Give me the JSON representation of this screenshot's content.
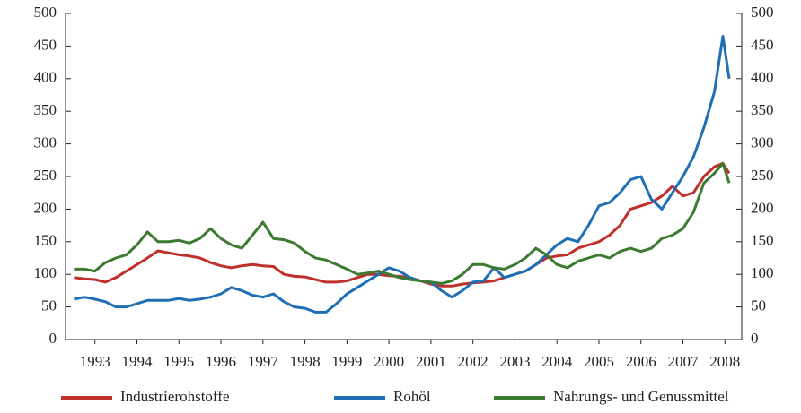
{
  "chart_data": {
    "type": "line",
    "x": [
      1993.0,
      1993.25,
      1993.5,
      1993.75,
      1994.0,
      1994.25,
      1994.5,
      1994.75,
      1995.0,
      1995.25,
      1995.5,
      1995.75,
      1996.0,
      1996.25,
      1996.5,
      1996.75,
      1997.0,
      1997.25,
      1997.5,
      1997.75,
      1998.0,
      1998.25,
      1998.5,
      1998.75,
      1999.0,
      1999.25,
      1999.5,
      1999.75,
      2000.0,
      2000.25,
      2000.5,
      2000.75,
      2001.0,
      2001.25,
      2001.5,
      2001.75,
      2002.0,
      2002.25,
      2002.5,
      2002.75,
      2003.0,
      2003.25,
      2003.5,
      2003.75,
      2004.0,
      2004.25,
      2004.5,
      2004.75,
      2005.0,
      2005.25,
      2005.5,
      2005.75,
      2006.0,
      2006.25,
      2006.5,
      2006.75,
      2007.0,
      2007.25,
      2007.5,
      2007.75,
      2008.0,
      2008.25,
      2008.45,
      2008.6
    ],
    "series": [
      {
        "name": "Industrierohstoffe",
        "color": "#c0302b",
        "values": [
          95,
          93,
          92,
          88,
          95,
          105,
          115,
          125,
          136,
          133,
          130,
          128,
          125,
          118,
          113,
          110,
          113,
          115,
          113,
          112,
          100,
          97,
          96,
          92,
          88,
          88,
          90,
          95,
          100,
          100,
          98,
          97,
          95,
          90,
          85,
          82,
          82,
          85,
          87,
          88,
          90,
          95,
          100,
          105,
          115,
          125,
          128,
          130,
          140,
          145,
          150,
          160,
          175,
          200,
          205,
          210,
          220,
          235,
          220,
          225,
          250,
          265,
          270,
          255
        ]
      },
      {
        "name": "Rohöl",
        "color": "#1f6fb5",
        "values": [
          62,
          65,
          62,
          58,
          50,
          50,
          55,
          60,
          60,
          60,
          63,
          60,
          62,
          65,
          70,
          80,
          75,
          68,
          65,
          70,
          58,
          50,
          48,
          42,
          42,
          55,
          70,
          80,
          90,
          100,
          110,
          105,
          95,
          90,
          88,
          75,
          65,
          75,
          88,
          90,
          110,
          95,
          100,
          105,
          115,
          130,
          145,
          155,
          150,
          175,
          205,
          210,
          225,
          245,
          250,
          215,
          200,
          225,
          250,
          280,
          325,
          380,
          465,
          400
        ]
      },
      {
        "name": "Nahrungs- und Genussmittel",
        "color": "#3c7a32",
        "values": [
          108,
          108,
          105,
          118,
          125,
          130,
          145,
          165,
          150,
          150,
          152,
          148,
          155,
          170,
          155,
          145,
          140,
          160,
          180,
          155,
          153,
          148,
          135,
          125,
          122,
          115,
          108,
          100,
          102,
          105,
          100,
          95,
          92,
          90,
          88,
          86,
          90,
          100,
          115,
          115,
          110,
          108,
          115,
          125,
          140,
          130,
          115,
          110,
          120,
          125,
          130,
          125,
          135,
          140,
          135,
          140,
          155,
          160,
          170,
          195,
          240,
          255,
          270,
          240
        ]
      }
    ],
    "xlim": [
      1992.8,
      2008.9
    ],
    "xticks": [
      {
        "value": 1993.5,
        "label": "1993"
      },
      {
        "value": 1994.5,
        "label": "1994"
      },
      {
        "value": 1995.5,
        "label": "1995"
      },
      {
        "value": 1996.5,
        "label": "1996"
      },
      {
        "value": 1997.5,
        "label": "1997"
      },
      {
        "value": 1998.5,
        "label": "1998"
      },
      {
        "value": 1999.5,
        "label": "1999"
      },
      {
        "value": 2000.5,
        "label": "2000"
      },
      {
        "value": 2001.5,
        "label": "2001"
      },
      {
        "value": 2002.5,
        "label": "2002"
      },
      {
        "value": 2003.5,
        "label": "2003"
      },
      {
        "value": 2004.5,
        "label": "2004"
      },
      {
        "value": 2005.5,
        "label": "2005"
      },
      {
        "value": 2006.5,
        "label": "2006"
      },
      {
        "value": 2007.5,
        "label": "2007"
      },
      {
        "value": 2008.5,
        "label": "2008"
      }
    ],
    "ylim": [
      0,
      500
    ],
    "yticks": [
      0,
      50,
      100,
      150,
      200,
      250,
      300,
      350,
      400,
      450,
      500
    ],
    "y2lim": [
      0,
      500
    ],
    "y2ticks": [
      0,
      50,
      100,
      150,
      200,
      250,
      300,
      350,
      400,
      450,
      500
    ],
    "grid": false,
    "legend": "bottom"
  }
}
